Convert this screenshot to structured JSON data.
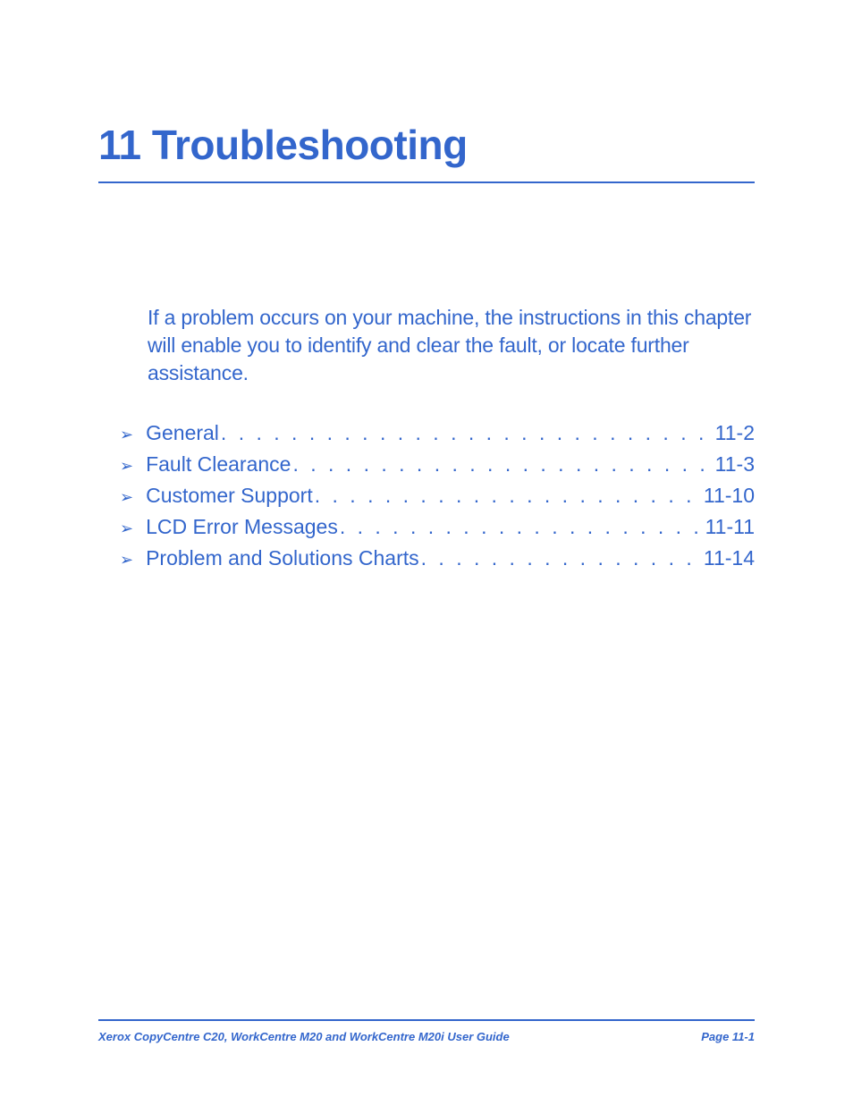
{
  "colors": {
    "primary": "#3366cc",
    "background": "#ffffff"
  },
  "typography": {
    "title_fontsize": 46,
    "intro_fontsize": 23,
    "toc_fontsize": 23,
    "footer_fontsize": 13,
    "font_family": "Arial, Helvetica, sans-serif"
  },
  "chapter": {
    "number": "11",
    "title": "Troubleshooting",
    "full_title": "11 Troubleshooting"
  },
  "intro": "If a problem occurs on your machine, the instructions in this chapter will enable you to identify and clear the fault, or locate further assistance.",
  "toc": {
    "bullet_glyph": "➢",
    "leader_char": ".",
    "items": [
      {
        "label": "General",
        "page": "11-2"
      },
      {
        "label": "Fault Clearance",
        "page": "11-3"
      },
      {
        "label": "Customer Support",
        "page": "11-10"
      },
      {
        "label": "LCD Error Messages",
        "page": "11-11"
      },
      {
        "label": "Problem and Solutions Charts",
        "page": "11-14"
      }
    ]
  },
  "footer": {
    "left": "Xerox CopyCentre C20, WorkCentre M20 and WorkCentre M20i User Guide",
    "right": "Page 11-1"
  }
}
